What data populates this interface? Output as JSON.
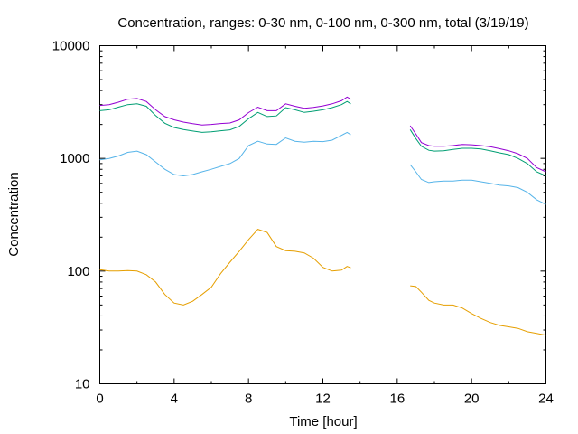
{
  "chart_data": {
    "type": "line",
    "title": "Concentration, ranges: 0-30 nm, 0-100 nm, 0-300 nm, total (3/19/19)",
    "xlabel": "Time [hour]",
    "ylabel": "Concentration",
    "xlim": [
      0,
      24
    ],
    "ylim": [
      10,
      10000
    ],
    "yscale": "log",
    "xticks": [
      0,
      4,
      8,
      12,
      16,
      20,
      24
    ],
    "xtick_labels": [
      "0",
      "4",
      "8",
      "12",
      "16",
      "20",
      "24"
    ],
    "yticks": [
      10,
      100,
      1000,
      10000
    ],
    "ytick_labels": [
      "10",
      "100",
      "1000",
      "10000"
    ],
    "grid": false,
    "legend": "none",
    "series": [
      {
        "color": "#e69f00",
        "segments": [
          [
            [
              0,
              103
            ],
            [
              0.5,
              100
            ],
            [
              1,
              100
            ],
            [
              1.5,
              101
            ],
            [
              2,
              100
            ],
            [
              2.5,
              93
            ],
            [
              3,
              80
            ],
            [
              3.5,
              62
            ],
            [
              4,
              52
            ],
            [
              4.5,
              50
            ],
            [
              5,
              54
            ],
            [
              5.5,
              62
            ],
            [
              6,
              72
            ],
            [
              6.5,
              95
            ],
            [
              7,
              120
            ],
            [
              7.5,
              150
            ],
            [
              8,
              190
            ],
            [
              8.5,
              235
            ],
            [
              9,
              220
            ],
            [
              9.5,
              165
            ],
            [
              10,
              152
            ],
            [
              10.5,
              150
            ],
            [
              11,
              145
            ],
            [
              11.5,
              130
            ],
            [
              12,
              108
            ],
            [
              12.5,
              100
            ],
            [
              13,
              102
            ],
            [
              13.3,
              110
            ],
            [
              13.5,
              107
            ]
          ],
          [
            [
              16.7,
              74
            ],
            [
              17,
              73
            ],
            [
              17.3,
              65
            ],
            [
              17.7,
              55
            ],
            [
              18,
              52
            ],
            [
              18.5,
              50
            ],
            [
              19,
              50
            ],
            [
              19.5,
              47
            ],
            [
              20,
              42
            ],
            [
              20.5,
              38
            ],
            [
              21,
              35
            ],
            [
              21.5,
              33
            ],
            [
              22,
              32
            ],
            [
              22.5,
              31
            ],
            [
              23,
              29
            ],
            [
              23.5,
              28
            ],
            [
              24,
              27
            ]
          ]
        ]
      },
      {
        "color": "#56b4e9",
        "segments": [
          [
            [
              0,
              970
            ],
            [
              0.5,
              1000
            ],
            [
              1,
              1050
            ],
            [
              1.5,
              1130
            ],
            [
              2,
              1160
            ],
            [
              2.5,
              1080
            ],
            [
              3,
              930
            ],
            [
              3.5,
              800
            ],
            [
              4,
              720
            ],
            [
              4.5,
              700
            ],
            [
              5,
              720
            ],
            [
              5.5,
              760
            ],
            [
              6,
              800
            ],
            [
              6.5,
              850
            ],
            [
              7,
              900
            ],
            [
              7.5,
              1000
            ],
            [
              8,
              1300
            ],
            [
              8.5,
              1420
            ],
            [
              9,
              1340
            ],
            [
              9.5,
              1330
            ],
            [
              10,
              1520
            ],
            [
              10.5,
              1420
            ],
            [
              11,
              1390
            ],
            [
              11.5,
              1420
            ],
            [
              12,
              1410
            ],
            [
              12.5,
              1450
            ],
            [
              13,
              1600
            ],
            [
              13.3,
              1700
            ],
            [
              13.5,
              1620
            ]
          ],
          [
            [
              16.7,
              880
            ],
            [
              17,
              760
            ],
            [
              17.3,
              650
            ],
            [
              17.7,
              610
            ],
            [
              18,
              620
            ],
            [
              18.5,
              630
            ],
            [
              19,
              630
            ],
            [
              19.5,
              640
            ],
            [
              20,
              640
            ],
            [
              20.5,
              620
            ],
            [
              21,
              600
            ],
            [
              21.5,
              580
            ],
            [
              22,
              570
            ],
            [
              22.5,
              550
            ],
            [
              23,
              500
            ],
            [
              23.5,
              430
            ],
            [
              24,
              390
            ]
          ]
        ]
      },
      {
        "color": "#009e73",
        "segments": [
          [
            [
              0,
              2650
            ],
            [
              0.5,
              2700
            ],
            [
              1,
              2850
            ],
            [
              1.5,
              3000
            ],
            [
              2,
              3050
            ],
            [
              2.5,
              2900
            ],
            [
              3,
              2400
            ],
            [
              3.5,
              2050
            ],
            [
              4,
              1880
            ],
            [
              4.5,
              1800
            ],
            [
              5,
              1750
            ],
            [
              5.5,
              1700
            ],
            [
              6,
              1720
            ],
            [
              6.5,
              1760
            ],
            [
              7,
              1790
            ],
            [
              7.5,
              1920
            ],
            [
              8,
              2250
            ],
            [
              8.5,
              2560
            ],
            [
              9,
              2350
            ],
            [
              9.5,
              2380
            ],
            [
              10,
              2820
            ],
            [
              10.5,
              2700
            ],
            [
              11,
              2560
            ],
            [
              11.5,
              2620
            ],
            [
              12,
              2700
            ],
            [
              12.5,
              2820
            ],
            [
              13,
              3000
            ],
            [
              13.3,
              3200
            ],
            [
              13.5,
              3050
            ]
          ],
          [
            [
              16.7,
              1800
            ],
            [
              17,
              1500
            ],
            [
              17.3,
              1280
            ],
            [
              17.7,
              1180
            ],
            [
              18,
              1160
            ],
            [
              18.5,
              1170
            ],
            [
              19,
              1200
            ],
            [
              19.5,
              1230
            ],
            [
              20,
              1230
            ],
            [
              20.5,
              1210
            ],
            [
              21,
              1170
            ],
            [
              21.5,
              1120
            ],
            [
              22,
              1080
            ],
            [
              22.5,
              1000
            ],
            [
              23,
              900
            ],
            [
              23.5,
              760
            ],
            [
              24,
              700
            ]
          ]
        ]
      },
      {
        "color": "#9400d3",
        "segments": [
          [
            [
              0,
              2950
            ],
            [
              0.5,
              3000
            ],
            [
              1,
              3150
            ],
            [
              1.5,
              3350
            ],
            [
              2,
              3400
            ],
            [
              2.5,
              3200
            ],
            [
              3,
              2700
            ],
            [
              3.5,
              2350
            ],
            [
              4,
              2200
            ],
            [
              4.5,
              2100
            ],
            [
              5,
              2030
            ],
            [
              5.5,
              1980
            ],
            [
              6,
              2000
            ],
            [
              6.5,
              2040
            ],
            [
              7,
              2060
            ],
            [
              7.5,
              2200
            ],
            [
              8,
              2550
            ],
            [
              8.5,
              2850
            ],
            [
              9,
              2650
            ],
            [
              9.5,
              2650
            ],
            [
              10,
              3050
            ],
            [
              10.5,
              2900
            ],
            [
              11,
              2780
            ],
            [
              11.5,
              2830
            ],
            [
              12,
              2920
            ],
            [
              12.5,
              3050
            ],
            [
              13,
              3250
            ],
            [
              13.3,
              3500
            ],
            [
              13.5,
              3350
            ]
          ],
          [
            [
              16.7,
              1950
            ],
            [
              17,
              1650
            ],
            [
              17.3,
              1380
            ],
            [
              17.7,
              1300
            ],
            [
              18,
              1280
            ],
            [
              18.5,
              1280
            ],
            [
              19,
              1300
            ],
            [
              19.5,
              1330
            ],
            [
              20,
              1320
            ],
            [
              20.5,
              1300
            ],
            [
              21,
              1270
            ],
            [
              21.5,
              1220
            ],
            [
              22,
              1170
            ],
            [
              22.5,
              1100
            ],
            [
              23,
              1000
            ],
            [
              23.5,
              830
            ],
            [
              24,
              760
            ]
          ]
        ]
      }
    ]
  }
}
